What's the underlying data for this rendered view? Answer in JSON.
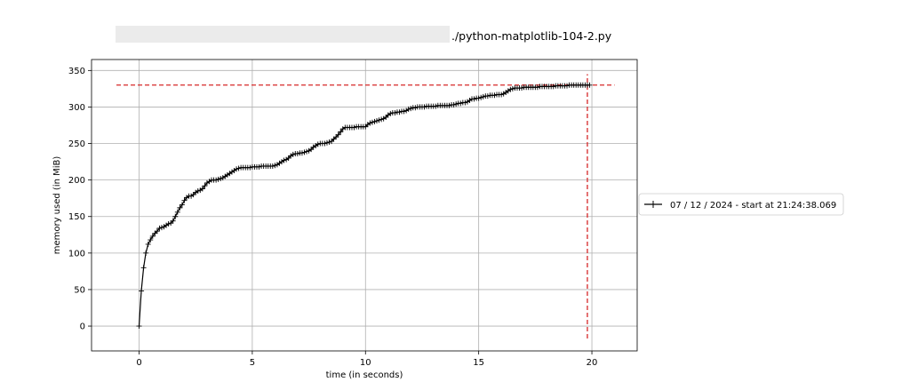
{
  "chart_data": {
    "type": "line",
    "title": "./python-matplotlib-104-2.py",
    "xlabel": "time (in seconds)",
    "ylabel": "memory used (in MiB)",
    "xlim": [
      -2.1,
      22.0
    ],
    "ylim": [
      -34,
      365
    ],
    "x_ticks": [
      0,
      5,
      10,
      15,
      20
    ],
    "y_ticks": [
      0,
      50,
      100,
      150,
      200,
      250,
      300,
      350
    ],
    "grid": true,
    "legend_position": "outside-right",
    "series": [
      {
        "name": "07 / 12 / 2024 - start at 21:24:38.069",
        "color": "#000000",
        "marker": "+",
        "x": [
          0.0,
          0.1,
          0.2,
          0.3,
          0.4,
          0.5,
          0.6,
          0.7,
          0.8,
          0.9,
          1.0,
          1.1,
          1.2,
          1.3,
          1.4,
          1.5,
          1.6,
          1.7,
          1.8,
          1.9,
          2.0,
          2.1,
          2.2,
          2.3,
          2.4,
          2.5,
          2.6,
          2.7,
          2.8,
          2.9,
          3.0,
          3.1,
          3.2,
          3.3,
          3.4,
          3.5,
          3.6,
          3.7,
          3.8,
          3.9,
          4.0,
          4.1,
          4.2,
          4.3,
          4.4,
          4.5,
          4.6,
          4.7,
          4.8,
          4.9,
          5.0,
          5.1,
          5.2,
          5.3,
          5.4,
          5.5,
          5.6,
          5.7,
          5.8,
          5.9,
          6.0,
          6.1,
          6.2,
          6.3,
          6.4,
          6.5,
          6.6,
          6.7,
          6.8,
          6.9,
          7.0,
          7.1,
          7.2,
          7.3,
          7.4,
          7.5,
          7.6,
          7.7,
          7.8,
          7.9,
          8.0,
          8.1,
          8.2,
          8.3,
          8.4,
          8.5,
          8.6,
          8.7,
          8.8,
          8.9,
          9.0,
          9.1,
          9.2,
          9.3,
          9.4,
          9.5,
          9.6,
          9.7,
          9.8,
          9.9,
          10.0,
          10.1,
          10.2,
          10.3,
          10.4,
          10.5,
          10.6,
          10.7,
          10.8,
          10.9,
          11.0,
          11.1,
          11.2,
          11.3,
          11.4,
          11.5,
          11.6,
          11.7,
          11.8,
          11.9,
          12.0,
          12.1,
          12.2,
          12.3,
          12.4,
          12.5,
          12.6,
          12.7,
          12.8,
          12.9,
          13.0,
          13.1,
          13.2,
          13.3,
          13.4,
          13.5,
          13.6,
          13.7,
          13.8,
          13.9,
          14.0,
          14.1,
          14.2,
          14.3,
          14.4,
          14.5,
          14.6,
          14.7,
          14.8,
          14.9,
          15.0,
          15.1,
          15.2,
          15.3,
          15.4,
          15.5,
          15.6,
          15.7,
          15.8,
          15.9,
          16.0,
          16.1,
          16.2,
          16.3,
          16.4,
          16.5,
          16.6,
          16.7,
          16.8,
          16.9,
          17.0,
          17.1,
          17.2,
          17.3,
          17.4,
          17.5,
          17.6,
          17.7,
          17.8,
          17.9,
          18.0,
          18.1,
          18.2,
          18.3,
          18.4,
          18.5,
          18.6,
          18.7,
          18.8,
          18.9,
          19.0,
          19.1,
          19.2,
          19.3,
          19.4,
          19.5,
          19.6,
          19.7,
          19.8,
          19.9
        ],
        "y": [
          0,
          48,
          80,
          100,
          112,
          118,
          123,
          127,
          130,
          134,
          135,
          136,
          138,
          140,
          141,
          144,
          150,
          156,
          162,
          166,
          172,
          176,
          178,
          178,
          180,
          183,
          185,
          186,
          188,
          192,
          196,
          198,
          200,
          200,
          200,
          201,
          202,
          203,
          205,
          207,
          209,
          211,
          213,
          215,
          216,
          217,
          217,
          217,
          217,
          217,
          218,
          218,
          218,
          218,
          219,
          219,
          219,
          219,
          219,
          219,
          220,
          221,
          223,
          225,
          227,
          228,
          230,
          233,
          235,
          236,
          236,
          237,
          237,
          238,
          239,
          240,
          242,
          245,
          247,
          249,
          250,
          250,
          250,
          251,
          252,
          253,
          256,
          259,
          262,
          266,
          270,
          272,
          272,
          272,
          272,
          272,
          273,
          273,
          273,
          273,
          273,
          276,
          278,
          279,
          280,
          281,
          282,
          283,
          284,
          286,
          289,
          291,
          292,
          292,
          293,
          293,
          294,
          294,
          295,
          297,
          298,
          299,
          299,
          300,
          300,
          300,
          300,
          301,
          301,
          301,
          301,
          301,
          302,
          302,
          302,
          302,
          302,
          302,
          303,
          303,
          304,
          305,
          305,
          306,
          306,
          307,
          309,
          311,
          311,
          312,
          312,
          313,
          314,
          315,
          315,
          316,
          316,
          316,
          317,
          317,
          317,
          318,
          320,
          322,
          324,
          325,
          326,
          326,
          326,
          326,
          327,
          327,
          327,
          327,
          327,
          327,
          327,
          328,
          328,
          328,
          328,
          328,
          328,
          328,
          329,
          329,
          329,
          329,
          329,
          329,
          330,
          330,
          330,
          330,
          330,
          330,
          330,
          330,
          330,
          330
        ]
      }
    ],
    "reference_lines": [
      {
        "orientation": "horizontal",
        "value": 330,
        "from": -1.0,
        "to": 21.0,
        "color": "#d62728",
        "style": "dashed"
      },
      {
        "orientation": "vertical",
        "value": 19.8,
        "from": -17,
        "to": 345,
        "color": "#d62728",
        "style": "dashed"
      }
    ]
  }
}
